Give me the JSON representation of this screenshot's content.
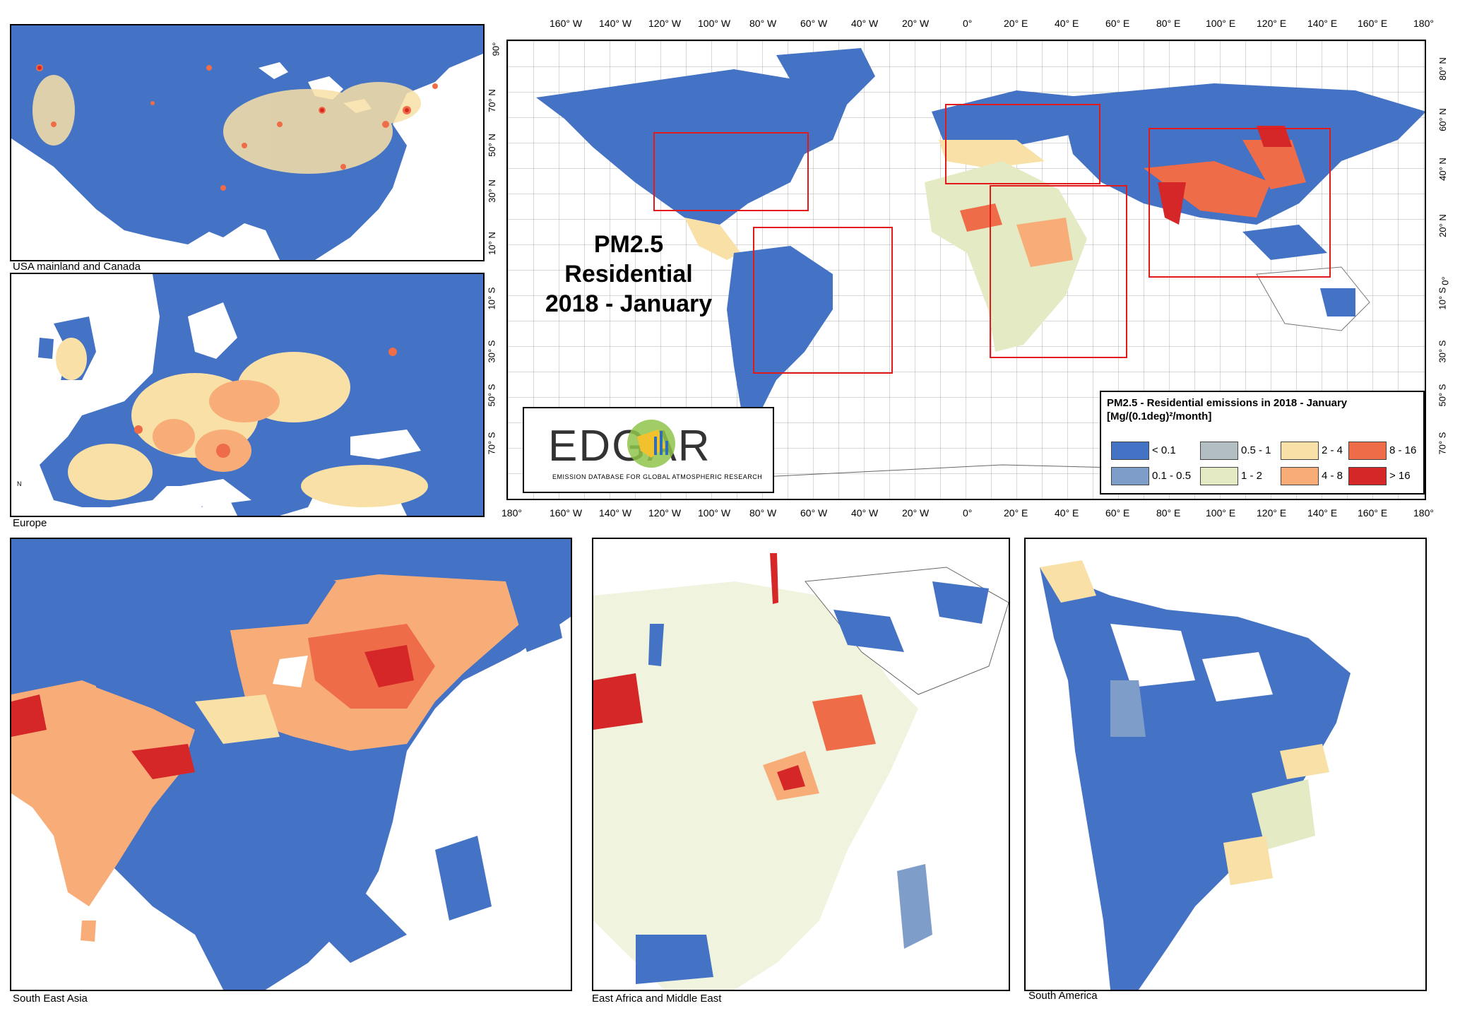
{
  "title": {
    "line1": "PM2.5",
    "line2": "Residential",
    "line3": "2018 - January"
  },
  "captions": {
    "usa": "USA mainland and Canada",
    "europe": "Europe",
    "sea": "South East Asia",
    "africa": "East Africa and Middle East",
    "samerica": "South America"
  },
  "axes": {
    "lon_labels": [
      "180°",
      "160° W",
      "140° W",
      "120° W",
      "100° W",
      "80° W",
      "60° W",
      "40° W",
      "20° W",
      "0°",
      "20° E",
      "40° E",
      "60° E",
      "80° E",
      "100° E",
      "120° E",
      "140° E",
      "160° E",
      "180°"
    ],
    "lat_labels": [
      "90°",
      "70° N",
      "50° N",
      "30° N",
      "10° N",
      "10° S",
      "30° S",
      "50° S",
      "70° S"
    ],
    "lat_labels_right": [
      "80° N",
      "60° N",
      "40° N",
      "20° N",
      "0°",
      "10° S",
      "30° S",
      "50° S",
      "70° S"
    ]
  },
  "legend": {
    "title_line1": "PM2.5 - Residential emissions in 2018 - January",
    "title_line2": "[Mg/(0.1deg)²/month]",
    "classes": [
      {
        "label": "< 0.1",
        "color": "#4472c4"
      },
      {
        "label": "0.1 - 0.5",
        "color": "#7f9dc9"
      },
      {
        "label": "0.5 - 1",
        "color": "#b2bec2"
      },
      {
        "label": "1 - 2",
        "color": "#e4ebc4"
      },
      {
        "label": "2 - 4",
        "color": "#f8e0a6"
      },
      {
        "label": "4 - 8",
        "color": "#f8ad79"
      },
      {
        "label": "8 - 16",
        "color": "#ef6c48"
      },
      {
        "label": "> 16",
        "color": "#d62728"
      }
    ]
  },
  "logo": {
    "word": "EDGAR",
    "subtitle": "EMISSION DATABASE FOR GLOBAL ATMOSPHERIC RESEARCH"
  },
  "colors": {
    "ocean": "#ffffff",
    "land_low": "#4472c4",
    "box": "#e31a1c",
    "grid": "#b0b0b0"
  }
}
